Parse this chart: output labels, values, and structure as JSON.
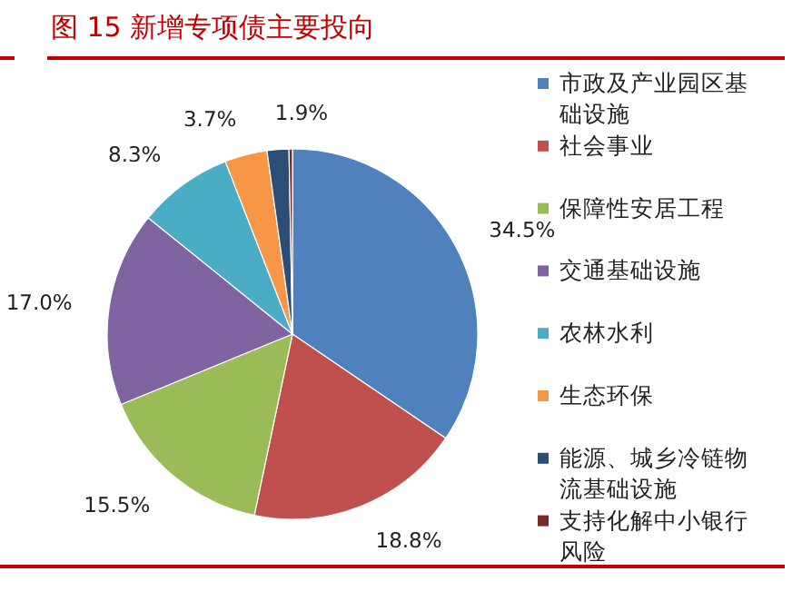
{
  "chart_data": {
    "type": "pie",
    "title": "图 15 新增专项债主要投向",
    "categories": [
      "市政及产业园区基础设施",
      "社会事业",
      "保障性安居工程",
      "交通基础设施",
      "农林水利",
      "生态环保",
      "能源、城乡冷链物流基础设施",
      "支持化解中小银行风险"
    ],
    "values": [
      34.5,
      18.8,
      15.5,
      17.0,
      8.3,
      3.7,
      1.9,
      0.3
    ],
    "colors": [
      "#4f81bd",
      "#c0504d",
      "#9bbb59",
      "#8064a2",
      "#4bacc6",
      "#f79646",
      "#2c4d75",
      "#772c2a"
    ],
    "value_labels": [
      "34.5%",
      "18.8%",
      "15.5%",
      "17.0%",
      "8.3%",
      "3.7%",
      "1.9%",
      null
    ],
    "legend": "right"
  }
}
